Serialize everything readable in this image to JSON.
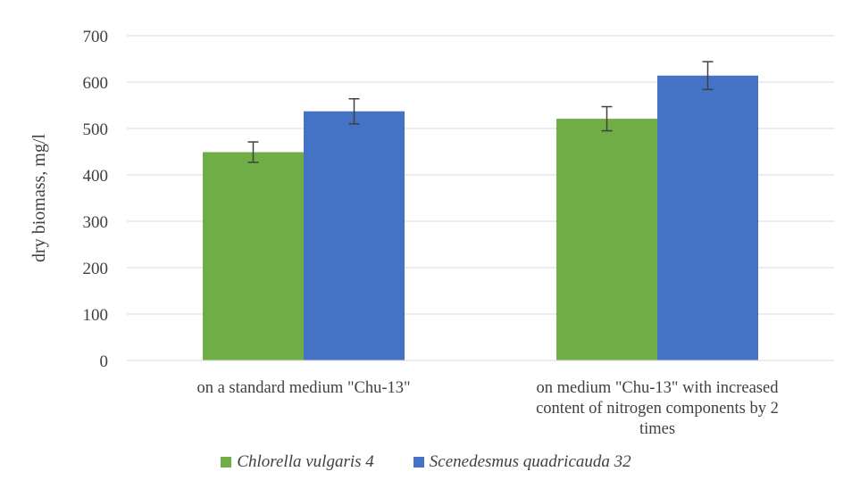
{
  "chart_data": {
    "type": "bar",
    "title": "",
    "xlabel": "",
    "ylabel": "dry biomass, mg/l",
    "ylim": [
      0,
      700
    ],
    "yticks": [
      0,
      100,
      200,
      300,
      400,
      500,
      600,
      700
    ],
    "grid": true,
    "legend_position": "bottom",
    "categories": [
      [
        "on a standard medium \"Chu-13\""
      ],
      [
        "on medium \"Chu-13\"  with increased",
        "content of nitrogen components by 2",
        "times"
      ]
    ],
    "series": [
      {
        "name": "Chlorella vulgaris 4",
        "color": "#70AD47",
        "values": [
          449,
          521
        ],
        "errors": [
          22,
          26
        ]
      },
      {
        "name": "Scenedesmus quadricauda 32",
        "color": "#4472C4",
        "values": [
          537,
          614
        ],
        "errors": [
          27,
          30
        ]
      }
    ]
  }
}
